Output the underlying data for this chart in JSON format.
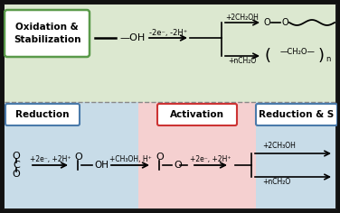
{
  "bg_color": "#1a1a1a",
  "top_bg": "#dce8d0",
  "bottom_left_bg": "#c8dce8",
  "bottom_mid_bg": "#f5d0d0",
  "bottom_right_bg": "#c8dce8",
  "green_box_color": "#5a9a4a",
  "blue_box_color": "#4a7aaa",
  "red_box_color": "#cc3333",
  "top_label": "Oxidation &\nStabilization",
  "bottom_left_label": "Reduction",
  "bottom_mid_label": "Activation",
  "bottom_right_label": "Reduction & S",
  "top_arrow_label1": "-2e⁻, -2H⁺",
  "top_arrow_label2": "+2CH₂OH",
  "top_arrow_label3": "+nCH₂O",
  "bottom_arrow_label1": "+2e⁻, +2H⁺",
  "bottom_arrow_label2": "+CH₃OH, H⁺",
  "bottom_arrow_label3": "+2e⁻, +2H⁺",
  "bottom_right_label2": "+2CH₃OH",
  "bottom_right_label3": "+nCH₂O",
  "fig_w": 3.76,
  "fig_h": 2.36,
  "dpi": 100
}
